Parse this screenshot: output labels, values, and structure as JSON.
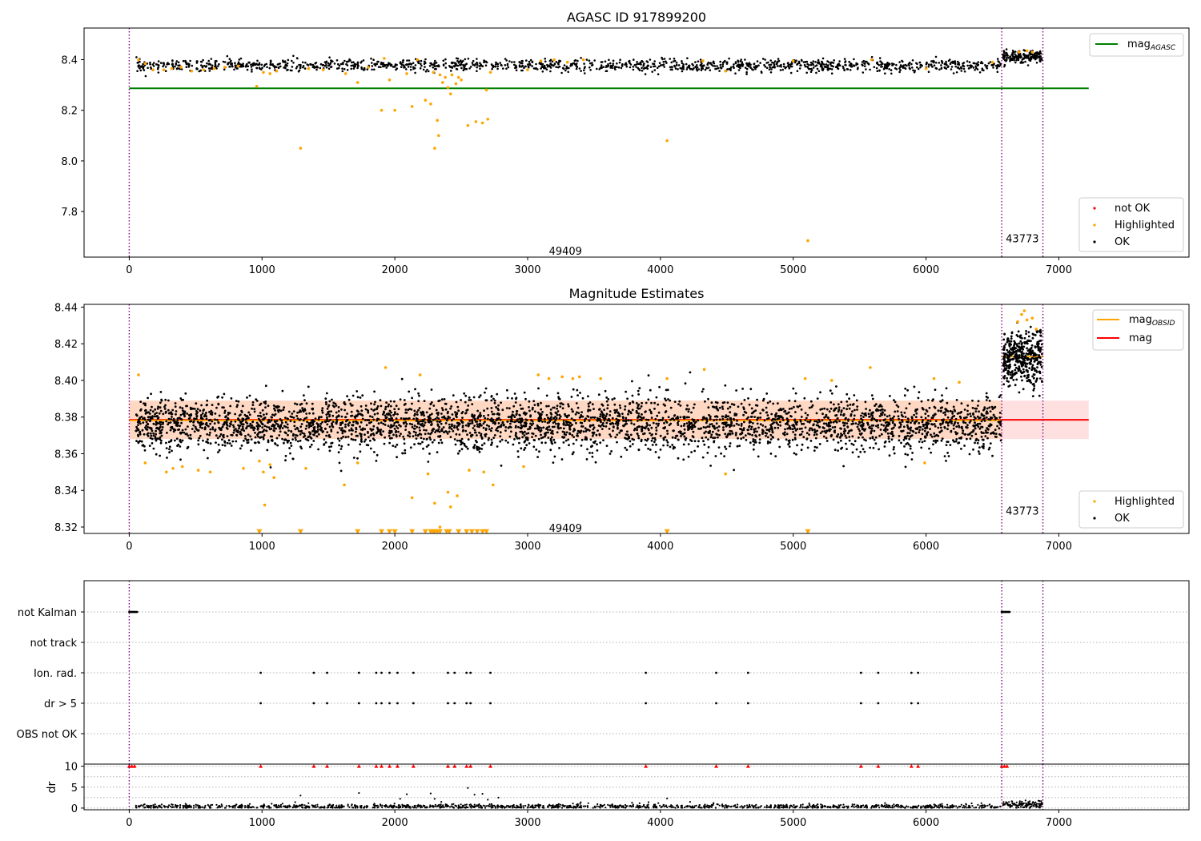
{
  "chart_data": [
    {
      "type": "scatter",
      "title": "AGASC ID 917899200",
      "xlabel": "",
      "ylabel": "",
      "xlim": [
        -340,
        7980
      ],
      "ylim": [
        7.62,
        8.525
      ],
      "xticks": [
        0,
        1000,
        2000,
        3000,
        4000,
        5000,
        6000,
        7000
      ],
      "yticks": [
        7.8,
        8.0,
        8.2,
        8.4
      ],
      "ytick_labels": [
        "7.8",
        "8.0",
        "8.2",
        "8.4"
      ],
      "grid": false,
      "obs_boundaries": [
        0,
        6570,
        6880
      ],
      "obs_labels": [
        {
          "text": "49409",
          "x": 3285,
          "y": 7.645
        },
        {
          "text": "43773",
          "x": 6725,
          "y": 7.695
        }
      ],
      "lines": [
        {
          "name": "mag",
          "subscript": "AGASC",
          "y": 8.287,
          "x": [
            0,
            7225
          ],
          "color": "#008000"
        }
      ],
      "ok_series": {
        "name": "OK",
        "color": "#000000",
        "segments": [
          {
            "x": [
              50,
              6565
            ],
            "mean": 8.377,
            "spread": 0.012,
            "n": 1400
          },
          {
            "x": [
              6580,
              6875
            ],
            "mean": 8.413,
            "spread": 0.012,
            "n": 160
          }
        ]
      },
      "highlighted_series": {
        "name": "Highlighted",
        "color": "#ffa500",
        "points": [
          [
            70,
            8.4
          ],
          [
            120,
            8.385
          ],
          [
            180,
            8.36
          ],
          [
            260,
            8.36
          ],
          [
            320,
            8.365
          ],
          [
            390,
            8.37
          ],
          [
            470,
            8.355
          ],
          [
            560,
            8.36
          ],
          [
            640,
            8.365
          ],
          [
            720,
            8.37
          ],
          [
            820,
            8.375
          ],
          [
            960,
            8.295
          ],
          [
            1010,
            8.35
          ],
          [
            1060,
            8.345
          ],
          [
            1110,
            8.355
          ],
          [
            1290,
            8.05
          ],
          [
            1350,
            8.365
          ],
          [
            1460,
            8.36
          ],
          [
            1630,
            8.345
          ],
          [
            1720,
            8.31
          ],
          [
            1800,
            8.37
          ],
          [
            1900,
            8.2
          ],
          [
            1920,
            8.405
          ],
          [
            1960,
            8.32
          ],
          [
            2000,
            8.2
          ],
          [
            2090,
            8.345
          ],
          [
            2130,
            8.215
          ],
          [
            2170,
            8.4
          ],
          [
            2230,
            8.24
          ],
          [
            2270,
            8.225
          ],
          [
            2290,
            8.35
          ],
          [
            2300,
            8.05
          ],
          [
            2320,
            8.16
          ],
          [
            2330,
            8.1
          ],
          [
            2340,
            8.34
          ],
          [
            2360,
            8.31
          ],
          [
            2380,
            8.33
          ],
          [
            2400,
            8.29
          ],
          [
            2420,
            8.265
          ],
          [
            2430,
            8.34
          ],
          [
            2460,
            8.305
          ],
          [
            2480,
            8.33
          ],
          [
            2500,
            8.32
          ],
          [
            2550,
            8.14
          ],
          [
            2610,
            8.155
          ],
          [
            2660,
            8.15
          ],
          [
            2690,
            8.28
          ],
          [
            2700,
            8.165
          ],
          [
            2720,
            8.35
          ],
          [
            3000,
            8.36
          ],
          [
            3100,
            8.395
          ],
          [
            3200,
            8.4
          ],
          [
            3300,
            8.39
          ],
          [
            3420,
            8.4
          ],
          [
            4050,
            8.08
          ],
          [
            4320,
            8.395
          ],
          [
            4490,
            8.355
          ],
          [
            5000,
            8.395
          ],
          [
            5110,
            7.685
          ],
          [
            5590,
            8.4
          ],
          [
            6000,
            8.365
          ],
          [
            6500,
            8.39
          ],
          [
            6700,
            8.43
          ],
          [
            6760,
            8.435
          ],
          [
            6800,
            8.43
          ]
        ]
      },
      "legend": {
        "placement": "lower-right",
        "entries": [
          "not OK",
          "Highlighted",
          "OK"
        ]
      },
      "legend_top": {
        "placement": "upper-right",
        "entries": [
          "mag_AGASC"
        ]
      }
    },
    {
      "type": "scatter",
      "title": "Magnitude Estimates",
      "xlabel": "",
      "ylabel": "",
      "xlim": [
        -340,
        7980
      ],
      "ylim": [
        8.3165,
        8.4415
      ],
      "xticks": [
        0,
        1000,
        2000,
        3000,
        4000,
        5000,
        6000,
        7000
      ],
      "yticks": [
        8.32,
        8.34,
        8.36,
        8.38,
        8.4,
        8.42,
        8.44
      ],
      "ytick_labels": [
        "8.32",
        "8.34",
        "8.36",
        "8.38",
        "8.40",
        "8.42",
        "8.44"
      ],
      "grid": false,
      "obs_boundaries": [
        0,
        6570,
        6880
      ],
      "obs_labels": [
        {
          "text": "49409",
          "x": 3285,
          "y": 8.3195
        },
        {
          "text": "43773",
          "x": 6725,
          "y": 8.329
        }
      ],
      "band": {
        "y_lower": 8.368,
        "y_upper": 8.389,
        "x": [
          0,
          7225
        ],
        "color": "#ff0000",
        "opacity": 0.12
      },
      "obsid_band": {
        "y_lower": 8.368,
        "y_upper": 8.389,
        "x": [
          0,
          6570
        ],
        "color": "#ffa500",
        "opacity": 0.12
      },
      "lines": [
        {
          "name": "mag",
          "y": 8.3785,
          "x": [
            0,
            7225
          ],
          "color": "#ff0000"
        },
        {
          "name": "mag",
          "subscript": "OBSID",
          "y": 8.3782,
          "x": [
            0,
            6570
          ],
          "color": "#ffa500"
        },
        {
          "name": "mag",
          "subscript": "OBSID",
          "y": 8.413,
          "x": [
            6570,
            6880
          ],
          "color": "#ffa500"
        }
      ],
      "ok_series": {
        "name": "OK",
        "color": "#000000",
        "segments": [
          {
            "x": [
              50,
              6565
            ],
            "mean": 8.376,
            "spread": 0.0075,
            "n": 3600
          },
          {
            "x": [
              6580,
              6875
            ],
            "mean": 8.412,
            "spread": 0.007,
            "n": 420
          }
        ]
      },
      "highlighted_series": {
        "name": "Highlighted",
        "color": "#ffa500",
        "points": [
          [
            70,
            8.403
          ],
          [
            120,
            8.355
          ],
          [
            280,
            8.35
          ],
          [
            330,
            8.352
          ],
          [
            400,
            8.353
          ],
          [
            520,
            8.351
          ],
          [
            610,
            8.35
          ],
          [
            860,
            8.352
          ],
          [
            980,
            8.356
          ],
          [
            1010,
            8.35
          ],
          [
            1020,
            8.332
          ],
          [
            1060,
            8.354
          ],
          [
            1090,
            8.347
          ],
          [
            1330,
            8.352
          ],
          [
            1620,
            8.343
          ],
          [
            1720,
            8.355
          ],
          [
            1930,
            8.407
          ],
          [
            2130,
            8.336
          ],
          [
            2190,
            8.403
          ],
          [
            2250,
            8.349
          ],
          [
            2300,
            8.333
          ],
          [
            2340,
            8.32
          ],
          [
            2400,
            8.339
          ],
          [
            2420,
            8.331
          ],
          [
            2470,
            8.337
          ],
          [
            2560,
            8.351
          ],
          [
            2670,
            8.35
          ],
          [
            2740,
            8.343
          ],
          [
            2970,
            8.353
          ],
          [
            3080,
            8.403
          ],
          [
            3160,
            8.401
          ],
          [
            3260,
            8.402
          ],
          [
            3340,
            8.401
          ],
          [
            3390,
            8.402
          ],
          [
            3550,
            8.401
          ],
          [
            4050,
            8.401
          ],
          [
            4330,
            8.406
          ],
          [
            4490,
            8.349
          ],
          [
            5090,
            8.401
          ],
          [
            5290,
            8.4
          ],
          [
            5580,
            8.407
          ],
          [
            5990,
            8.355
          ],
          [
            6060,
            8.401
          ],
          [
            6250,
            8.399
          ],
          [
            6690,
            8.432
          ],
          [
            6720,
            8.436
          ],
          [
            6740,
            8.438
          ],
          [
            6760,
            8.433
          ],
          [
            6800,
            8.434
          ],
          [
            6830,
            8.428
          ]
        ]
      },
      "lower_limit_markers": {
        "name": "Highlighted",
        "color": "#ffa500",
        "y": 8.3175,
        "x": [
          980,
          1290,
          1720,
          1900,
          1960,
          2000,
          2130,
          2230,
          2270,
          2290,
          2300,
          2320,
          2340,
          2390,
          2410,
          2480,
          2540,
          2580,
          2620,
          2660,
          2690,
          4050,
          5110
        ]
      },
      "legend": {
        "placement": "lower-right",
        "entries": [
          "Highlighted",
          "OK"
        ]
      },
      "legend_top": {
        "placement": "upper-right",
        "entries": [
          "mag_OBSID",
          "mag"
        ]
      }
    },
    {
      "type": "scatter",
      "title": "",
      "xlim": [
        -340,
        7980
      ],
      "categories": [
        "not Kalman",
        "not track",
        "Ion. rad.",
        "dr > 5",
        "OBS not OK"
      ],
      "obs_boundaries": [
        0,
        6570,
        6880
      ],
      "flag_points": {
        "not Kalman": {
          "x_ranges": [
            [
              0,
              60
            ],
            [
              6570,
              6630
            ]
          ]
        },
        "not track": {
          "x": []
        },
        "Ion. rad.": {
          "x": [
            990,
            1390,
            1490,
            1730,
            1860,
            1900,
            1960,
            2020,
            2140,
            2400,
            2450,
            2540,
            2570,
            2720,
            3890,
            4420,
            4660,
            5510,
            5640,
            5890,
            5940
          ]
        },
        "dr > 5": {
          "x": [
            990,
            1390,
            1490,
            1730,
            1860,
            1900,
            1960,
            2020,
            2140,
            2400,
            2450,
            2540,
            2570,
            2720,
            3890,
            4420,
            4660,
            5510,
            5640,
            5890,
            5940
          ]
        },
        "OBS not OK": {
          "x": []
        }
      },
      "grid": "horizontal-dotted"
    },
    {
      "type": "scatter",
      "title": "",
      "xlabel": "",
      "ylabel": "dr",
      "xlim": [
        -340,
        7980
      ],
      "ylim": [
        -0.4,
        10.5
      ],
      "xticks": [
        0,
        1000,
        2000,
        3000,
        4000,
        5000,
        6000,
        7000
      ],
      "yticks": [
        0,
        5,
        10
      ],
      "ytick_labels": [
        "0",
        "5",
        "10"
      ],
      "grid": "horizontal-dotted",
      "obs_boundaries": [
        0,
        6570,
        6880
      ],
      "clipped_markers": {
        "color": "#ff0000",
        "y": 10,
        "x": [
          0,
          20,
          40,
          990,
          1390,
          1490,
          1730,
          1860,
          1900,
          1960,
          2020,
          2140,
          2400,
          2450,
          2540,
          2570,
          2720,
          3890,
          4420,
          4660,
          5510,
          5640,
          5890,
          5940,
          6570,
          6590,
          6610
        ]
      },
      "ok_series": {
        "color": "#000000",
        "segments": [
          {
            "x": [
              50,
              6565
            ],
            "mean": 0.35,
            "spread": 0.3,
            "n": 1300
          },
          {
            "x": [
              6580,
              6875
            ],
            "mean": 0.9,
            "spread": 0.45,
            "n": 120
          }
        ]
      },
      "extra_points": [
        [
          1290,
          3.0
        ],
        [
          1730,
          3.6
        ],
        [
          2040,
          2.2
        ],
        [
          2090,
          3.3
        ],
        [
          2270,
          3.5
        ],
        [
          2300,
          2.2
        ],
        [
          2350,
          1.5
        ],
        [
          2550,
          4.8
        ],
        [
          2600,
          3.2
        ],
        [
          2660,
          3.4
        ],
        [
          2700,
          2.0
        ],
        [
          2780,
          2.5
        ],
        [
          3400,
          1.4
        ],
        [
          4050,
          2.3
        ],
        [
          4400,
          1.2
        ],
        [
          5120,
          1.1
        ],
        [
          6300,
          1.0
        ]
      ]
    }
  ]
}
